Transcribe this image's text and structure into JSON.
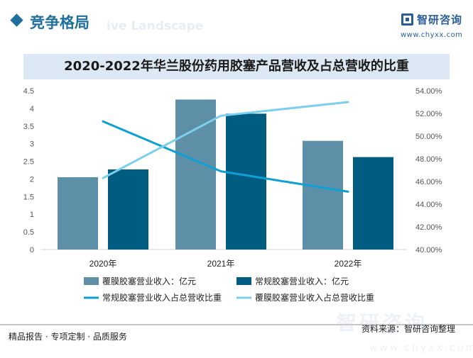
{
  "header": {
    "title": "竞争格局",
    "watermark": "ive Landscape",
    "logo_name": "智研咨询",
    "logo_url": "www.chyxx.com"
  },
  "chart_data": {
    "type": "bar",
    "title": "2020-2022年华兰股份药用胶塞产品营收及占总营收的比重",
    "categories": [
      "2020年",
      "2021年",
      "2022年"
    ],
    "y_left": {
      "min": 0,
      "max": 4.5,
      "ticks": [
        "0",
        "0.5",
        "1",
        "1.5",
        "2",
        "2.5",
        "3",
        "3.5",
        "4",
        "4.5"
      ]
    },
    "y_right": {
      "min": 40,
      "max": 54,
      "ticks": [
        "40.00%",
        "42.00%",
        "44.00%",
        "46.00%",
        "48.00%",
        "50.00%",
        "52.00%",
        "54.00%"
      ]
    },
    "bar_series": [
      {
        "name": "覆膜胶塞营业收入：亿元",
        "values": [
          2.05,
          4.25,
          3.08
        ],
        "color": "#5d8fa7"
      },
      {
        "name": "常规胶塞营业收入：亿元",
        "values": [
          2.27,
          3.85,
          2.62
        ],
        "color": "#005c80"
      }
    ],
    "line_series": [
      {
        "name": "常规胶塞营业收入占总营收比重",
        "values": [
          51.3,
          46.9,
          45.1
        ],
        "color": "#0e9fd4"
      },
      {
        "name": "覆膜胶塞营业收入占总营收比重",
        "values": [
          46.3,
          51.8,
          53.0
        ],
        "color": "#7ccfee"
      }
    ]
  },
  "footer": {
    "left_text": "精品报告 · 专项定制 · 品质服务",
    "source": "资料来源：智研咨询整理",
    "watermark_cn": "智研咨询",
    "watermark_url": "www.chyxx.com"
  }
}
